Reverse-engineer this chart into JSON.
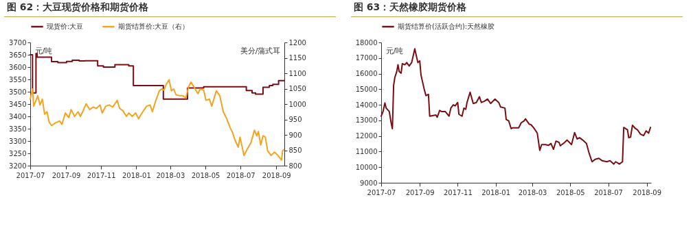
{
  "chart_data": [
    {
      "type": "line",
      "title": "图 62：大豆现货价格和期货价格",
      "ylabel": "元/吨",
      "y2label": "美分/蒲式耳",
      "legend": "top",
      "grid": false,
      "xlim": [
        "2017-07-01",
        "2018-09-15"
      ],
      "xticks": [
        "2017-07",
        "2017-09",
        "2017-11",
        "2018-01",
        "2018-03",
        "2018-05",
        "2018-07",
        "2018-09"
      ],
      "ylim": [
        3200,
        3700
      ],
      "yticks": [
        3200,
        3250,
        3300,
        3350,
        3400,
        3450,
        3500,
        3550,
        3600,
        3650,
        3700
      ],
      "y2lim": [
        800,
        1200
      ],
      "y2ticks": [
        800,
        850,
        900,
        950,
        1000,
        1050,
        1100,
        1150,
        1200
      ],
      "series": [
        {
          "name": "现货价:大豆",
          "type": "step",
          "color": "#7b0c12",
          "x": [
            "2017-07-01",
            "2017-07-05",
            "2017-07-11",
            "2017-07-13",
            "2017-08-07",
            "2017-08-18",
            "2017-09-02",
            "2017-09-12",
            "2017-09-24",
            "2017-10-04",
            "2017-10-26",
            "2017-11-05",
            "2017-11-25",
            "2017-12-19",
            "2017-12-27",
            "2018-02-17",
            "2018-03-31",
            "2018-04-28",
            "2018-07-11",
            "2018-07-21",
            "2018-07-27",
            "2018-08-09",
            "2018-08-20",
            "2018-08-26",
            "2018-09-05",
            "2018-09-15"
          ],
          "values": [
            3650,
            3495,
            3655,
            3640,
            3622,
            3618,
            3623,
            3628,
            3625,
            3626,
            3605,
            3600,
            3610,
            3605,
            3525,
            3470,
            3515,
            3520,
            3505,
            3495,
            3490,
            3518,
            3525,
            3530,
            3545,
            3545
          ]
        },
        {
          "name": "期货结算价:大豆（右）",
          "type": "line",
          "axis": "y2",
          "color": "#f5a21f",
          "x": [
            "2017-07-01",
            "2017-07-05",
            "2017-07-07",
            "2017-07-11",
            "2017-07-14",
            "2017-07-18",
            "2017-07-22",
            "2017-07-26",
            "2017-07-30",
            "2017-08-03",
            "2017-08-07",
            "2017-08-13",
            "2017-08-21",
            "2017-08-25",
            "2017-08-31",
            "2017-09-06",
            "2017-09-10",
            "2017-09-16",
            "2017-09-22",
            "2017-09-26",
            "2017-09-30",
            "2017-10-06",
            "2017-10-12",
            "2017-10-18",
            "2017-10-24",
            "2017-10-30",
            "2017-11-03",
            "2017-11-09",
            "2017-11-15",
            "2017-11-21",
            "2017-11-29",
            "2017-12-03",
            "2017-12-09",
            "2017-12-15",
            "2017-12-19",
            "2017-12-25",
            "2017-12-31",
            "2018-01-05",
            "2018-01-11",
            "2018-01-19",
            "2018-01-25",
            "2018-01-29",
            "2018-02-04",
            "2018-02-10",
            "2018-02-14",
            "2018-02-18",
            "2018-02-22",
            "2018-02-27",
            "2018-03-03",
            "2018-03-07",
            "2018-03-11",
            "2018-03-17",
            "2018-03-23",
            "2018-03-28",
            "2018-04-02",
            "2018-04-06",
            "2018-04-12",
            "2018-04-18",
            "2018-04-22",
            "2018-04-28",
            "2018-05-02",
            "2018-05-08",
            "2018-05-12",
            "2018-05-20",
            "2018-05-26",
            "2018-06-01",
            "2018-06-07",
            "2018-06-13",
            "2018-06-17",
            "2018-06-21",
            "2018-06-27",
            "2018-06-30",
            "2018-07-07",
            "2018-07-13",
            "2018-07-19",
            "2018-07-25",
            "2018-07-29",
            "2018-08-01",
            "2018-08-05",
            "2018-08-09",
            "2018-08-13",
            "2018-08-17",
            "2018-08-23",
            "2018-08-29",
            "2018-09-04",
            "2018-09-10",
            "2018-09-12",
            "2018-09-14"
          ],
          "values": [
            1016,
            1049,
            993,
            1012,
            1027,
            997,
            1016,
            967,
            975,
            941,
            930,
            938,
            945,
            934,
            971,
            956,
            982,
            960,
            975,
            960,
            975,
            1001,
            982,
            990,
            986,
            997,
            971,
            993,
            997,
            990,
            1012,
            986,
            978,
            960,
            971,
            960,
            971,
            952,
            971,
            993,
            997,
            975,
            1012,
            1043,
            1049,
            1045,
            1064,
            1079,
            1043,
            1049,
            1030,
            1027,
            1027,
            1019,
            1057,
            1071,
            1053,
            1034,
            1049,
            1045,
            1012,
            1016,
            993,
            1043,
            1027,
            975,
            952,
            923,
            908,
            885,
            860,
            893,
            833,
            855,
            874,
            915,
            897,
            911,
            867,
            897,
            893,
            848,
            833,
            844,
            833,
            818,
            848,
            852
          ]
        }
      ]
    },
    {
      "type": "line",
      "title": "图 63：天然橡胶期货价格",
      "ylabel": "元/吨",
      "legend": "top",
      "grid": false,
      "xlim": [
        "2017-07-01",
        "2018-09-08"
      ],
      "xticks": [
        "2017-07",
        "2017-09",
        "2017-11",
        "2018-01",
        "2018-03",
        "2018-05",
        "2018-07",
        "2018-09"
      ],
      "ylim": [
        9000,
        18000
      ],
      "yticks": [
        9000,
        10000,
        11000,
        12000,
        13000,
        14000,
        15000,
        16000,
        17000,
        18000
      ],
      "series": [
        {
          "name": "期货结算价(活跃合约):天然橡胶",
          "color": "#7b0c12",
          "x": [
            "2017-07-01",
            "2017-07-04",
            "2017-07-07",
            "2017-07-09",
            "2017-07-14",
            "2017-07-17",
            "2017-07-19",
            "2017-07-21",
            "2017-07-23",
            "2017-07-26",
            "2017-07-28",
            "2017-07-30",
            "2017-08-02",
            "2017-08-04",
            "2017-08-08",
            "2017-08-11",
            "2017-08-15",
            "2017-08-19",
            "2017-08-24",
            "2017-08-26",
            "2017-08-29",
            "2017-09-01",
            "2017-09-03",
            "2017-09-08",
            "2017-09-11",
            "2017-09-15",
            "2017-09-17",
            "2017-09-27",
            "2017-09-29",
            "2017-10-03",
            "2017-10-06",
            "2017-10-12",
            "2017-10-18",
            "2017-10-21",
            "2017-10-25",
            "2017-10-28",
            "2017-11-01",
            "2017-11-03",
            "2017-11-08",
            "2017-11-11",
            "2017-11-14",
            "2017-11-16",
            "2017-11-21",
            "2017-11-26",
            "2017-12-01",
            "2017-12-06",
            "2017-12-09",
            "2017-12-14",
            "2017-12-19",
            "2017-12-24",
            "2017-12-31",
            "2018-01-06",
            "2018-01-09",
            "2018-01-16",
            "2018-01-18",
            "2018-01-22",
            "2018-01-26",
            "2018-01-28",
            "2018-02-07",
            "2018-02-11",
            "2018-02-16",
            "2018-02-18",
            "2018-02-24",
            "2018-02-27",
            "2018-03-03",
            "2018-03-09",
            "2018-03-13",
            "2018-03-16",
            "2018-03-22",
            "2018-03-27",
            "2018-03-31",
            "2018-04-04",
            "2018-04-08",
            "2018-04-13",
            "2018-04-15",
            "2018-04-22",
            "2018-04-26",
            "2018-05-03",
            "2018-05-08",
            "2018-05-12",
            "2018-05-16",
            "2018-05-21",
            "2018-05-27",
            "2018-05-31",
            "2018-06-05",
            "2018-06-10",
            "2018-06-16",
            "2018-06-21",
            "2018-06-29",
            "2018-07-04",
            "2018-07-10",
            "2018-07-13",
            "2018-07-19",
            "2018-07-24",
            "2018-07-26",
            "2018-08-01",
            "2018-08-03",
            "2018-08-06",
            "2018-08-09",
            "2018-08-14",
            "2018-08-17",
            "2018-08-22",
            "2018-08-27",
            "2018-08-31",
            "2018-09-04",
            "2018-09-07"
          ],
          "values": [
            13270,
            13570,
            14120,
            13790,
            13570,
            12840,
            12470,
            15250,
            15760,
            16130,
            16570,
            16130,
            16030,
            16640,
            16570,
            16710,
            16490,
            16710,
            17590,
            17230,
            16710,
            16820,
            15910,
            15030,
            14590,
            14670,
            13270,
            13350,
            13200,
            13640,
            13570,
            13570,
            13270,
            13790,
            14000,
            13930,
            14150,
            13390,
            13270,
            13790,
            13710,
            14150,
            14810,
            14080,
            14150,
            14520,
            14150,
            14230,
            14370,
            14080,
            14370,
            14150,
            13860,
            13790,
            13060,
            12980,
            12470,
            12520,
            12520,
            12840,
            12980,
            13100,
            12760,
            12720,
            12540,
            12180,
            11080,
            11450,
            11450,
            11400,
            11520,
            11150,
            11670,
            11590,
            11370,
            11590,
            11740,
            11450,
            12220,
            11810,
            11890,
            11740,
            11520,
            10940,
            10350,
            10500,
            10570,
            10420,
            10350,
            10420,
            10200,
            10350,
            10200,
            10350,
            12550,
            12400,
            11890,
            11930,
            12690,
            12470,
            12400,
            12110,
            12030,
            12330,
            12180,
            12550
          ]
        }
      ]
    }
  ]
}
